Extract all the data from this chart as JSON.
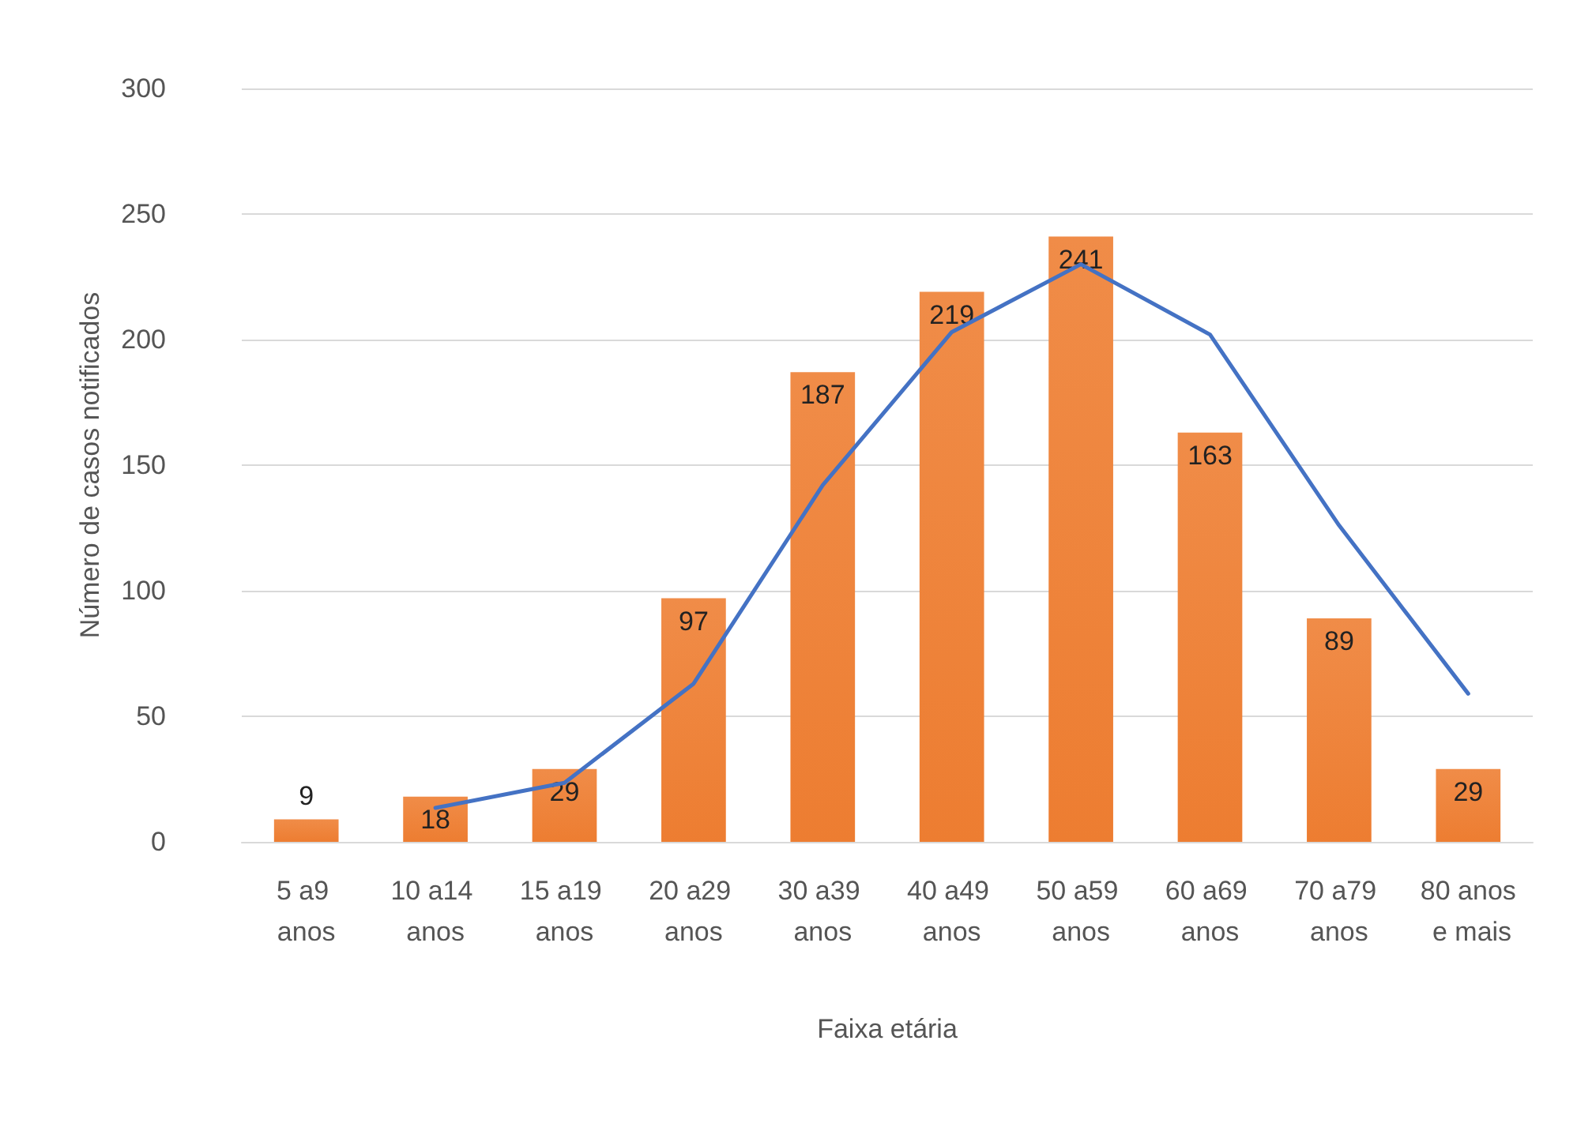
{
  "chart_data": {
    "type": "bar",
    "xlabel": "Faixa etária",
    "ylabel": "Número de casos notificados",
    "categories": [
      "5 a9 anos",
      "10 a14 anos",
      "15 a19 anos",
      "20 a29 anos",
      "30 a39 anos",
      "40 a49 anos",
      "50 a59 anos",
      "60 a69 anos",
      "70 a79 anos",
      "80 anos e mais"
    ],
    "series": [
      {
        "color": "#ed7d31",
        "values": [
          9,
          18,
          29,
          97,
          187,
          219,
          241,
          163,
          89,
          29
        ],
        "data_labels": true
      },
      {
        "type": "line",
        "color": "#4472c4",
        "values": [
          null,
          13.5,
          23.5,
          63,
          142,
          203,
          230,
          202,
          126,
          59
        ]
      }
    ],
    "ylim": [
      0,
      300
    ],
    "yticks": [
      0,
      50,
      100,
      150,
      200,
      250,
      300
    ],
    "grid": "y",
    "marker": "none",
    "line_style": "solid"
  }
}
